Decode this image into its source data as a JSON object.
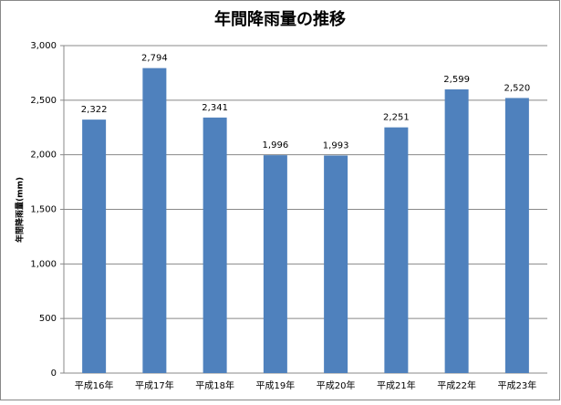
{
  "chart_data": {
    "type": "bar",
    "title": "年間降雨量の推移",
    "y_label": "年間降雨量(mm)",
    "categories": [
      "平成16年",
      "平成17年",
      "平成18年",
      "平成19年",
      "平成20年",
      "平成21年",
      "平成22年",
      "平成23年"
    ],
    "values": [
      2322,
      2794,
      2341,
      1996,
      1993,
      2251,
      2599,
      2520
    ],
    "value_labels": [
      "2,322",
      "2,794",
      "2,341",
      "1,996",
      "1,993",
      "2,251",
      "2,599",
      "2,520"
    ],
    "color": "#4f81bd",
    "ylim": [
      0,
      3000
    ],
    "yticks": [
      0,
      500,
      {
        "value": 1000,
        "label": "1,000"
      },
      {
        "value": 1500,
        "label": "1,500"
      },
      {
        "value": 2000,
        "label": "2,000"
      },
      {
        "value": 2500,
        "label": "2,500"
      },
      {
        "value": 3000,
        "label": "3,000"
      }
    ],
    "grid": true
  }
}
